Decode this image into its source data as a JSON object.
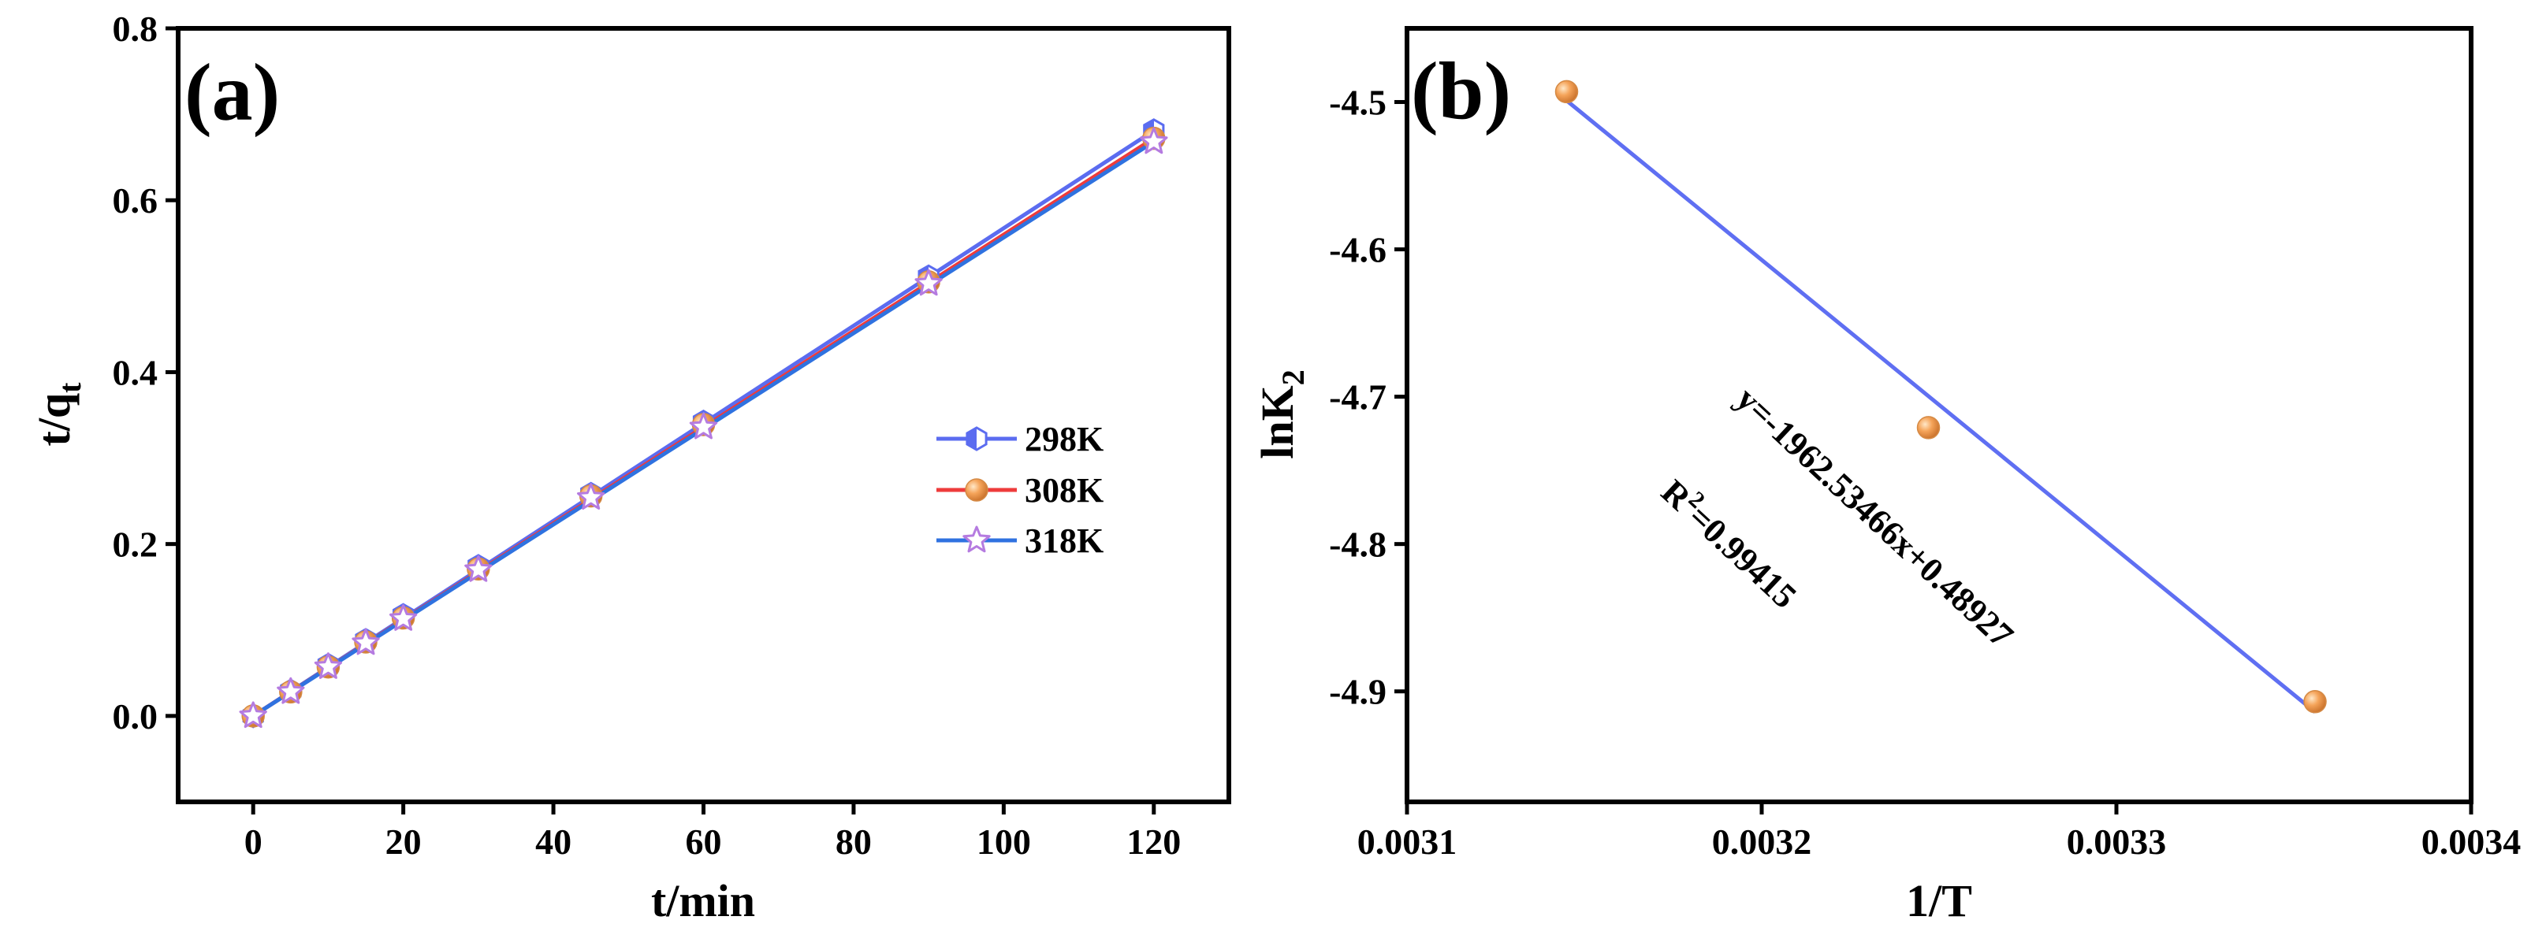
{
  "colors": {
    "s298": "#5b6cf0",
    "s308": "#ee3b3b",
    "s318": "#2f72e0",
    "orange": "#f5a45a",
    "star": "#b57be0",
    "fitB": "#5f6ff2"
  },
  "chart_data": [
    {
      "panel_label": "(a)",
      "type": "line",
      "xlabel": "t/min",
      "ylabel_main": "t/q",
      "ylabel_sub": "t",
      "xlim": [
        -10,
        130
      ],
      "ylim": [
        -0.1,
        0.8
      ],
      "xticks": [
        0,
        20,
        40,
        60,
        80,
        100,
        120
      ],
      "xtick_labels": [
        "0",
        "20",
        "40",
        "60",
        "80",
        "100",
        "120"
      ],
      "yticks": [
        0.0,
        0.2,
        0.4,
        0.6,
        0.8
      ],
      "ytick_labels": [
        "0.0",
        "0.2",
        "0.4",
        "0.6",
        "0.8"
      ],
      "legend_position": "center-right",
      "x": [
        0,
        5,
        10,
        15,
        20,
        30,
        45,
        60,
        90,
        120
      ],
      "series": [
        {
          "name": "298K",
          "marker": "hexagon-half",
          "color_key": "s298",
          "values": [
            0.0,
            0.029,
            0.059,
            0.088,
            0.117,
            0.174,
            0.258,
            0.342,
            0.511,
            0.681
          ],
          "fit": [
            0.0,
            0.681
          ]
        },
        {
          "name": "308K",
          "marker": "sphere",
          "color_key": "s308",
          "values": [
            0.0,
            0.028,
            0.057,
            0.086,
            0.114,
            0.171,
            0.256,
            0.339,
            0.505,
            0.672
          ],
          "fit": [
            0.0,
            0.672
          ]
        },
        {
          "name": "318K",
          "marker": "star",
          "color_key": "s318",
          "values": [
            0.0,
            0.028,
            0.057,
            0.085,
            0.113,
            0.17,
            0.254,
            0.336,
            0.503,
            0.668
          ],
          "fit": [
            0.0,
            0.668
          ]
        }
      ]
    },
    {
      "panel_label": "(b)",
      "type": "scatter",
      "xlabel": "1/T",
      "ylabel_main": "lnK",
      "ylabel_sub": "2",
      "xlim": [
        0.0031,
        0.0034
      ],
      "ylim": [
        -4.975,
        -4.45
      ],
      "xticks": [
        0.0031,
        0.0032,
        0.0033,
        0.0034
      ],
      "xtick_labels": [
        "0.0031",
        "0.0032",
        "0.0033",
        "0.0034"
      ],
      "yticks": [
        -4.5,
        -4.6,
        -4.7,
        -4.8,
        -4.9
      ],
      "ytick_labels": [
        "-4.5",
        "-4.6",
        "-4.7",
        "-4.8",
        "-4.9"
      ],
      "points": {
        "x": [
          0.003145,
          0.003247,
          0.003356
        ],
        "y": [
          -4.493,
          -4.721,
          -4.907
        ]
      },
      "fit_line": {
        "x": [
          0.003145,
          0.003356
        ],
        "y": [
          -4.499,
          -4.914
        ]
      },
      "equation": "y=-1962.53466x+0.48927",
      "r2_main": "R",
      "r2_sup": "2",
      "r2_value": "=0.99415"
    }
  ]
}
